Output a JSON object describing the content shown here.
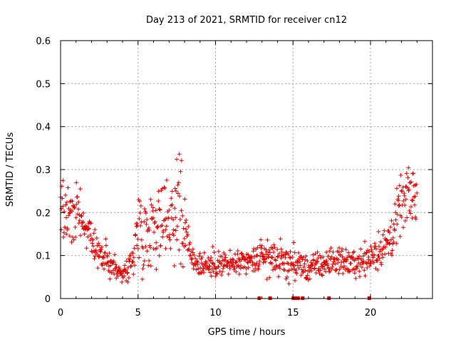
{
  "chart_data": {
    "type": "scatter",
    "title": "Day 213 of 2021, SRMTID for receiver cn12",
    "xlabel": "GPS time / hours",
    "ylabel": "SRMTID / TECUs",
    "xlim": [
      0,
      24
    ],
    "ylim": [
      0,
      0.6
    ],
    "x_ticks": [
      0,
      5,
      10,
      15,
      20
    ],
    "y_ticks": [
      0,
      0.1,
      0.2,
      0.3,
      0.4,
      0.5,
      0.6
    ],
    "x_tick_labels": [
      "0",
      "5",
      "10",
      "15",
      "20"
    ],
    "y_tick_labels": [
      "0",
      "0.1",
      "0.2",
      "0.3",
      "0.4",
      "0.5",
      "0.6"
    ],
    "grid": true,
    "marker": "+",
    "color": "#e00000",
    "series": [
      {
        "name": "SRMTID",
        "envelope_x": [
          0,
          0.3,
          0.6,
          1.0,
          1.5,
          2.0,
          2.5,
          3.0,
          3.5,
          4.0,
          4.5,
          5.0,
          5.5,
          6.0,
          6.5,
          7.0,
          7.5,
          7.7,
          8.0,
          8.5,
          9.0,
          10.0,
          11.0,
          12.0,
          13.0,
          14.0,
          15.0,
          16.0,
          17.0,
          18.0,
          19.0,
          20.0,
          21.0,
          21.5,
          22.0,
          22.5,
          22.9
        ],
        "envelope_y": [
          0.22,
          0.2,
          0.2,
          0.19,
          0.18,
          0.13,
          0.1,
          0.09,
          0.07,
          0.06,
          0.07,
          0.17,
          0.15,
          0.18,
          0.17,
          0.2,
          0.22,
          0.28,
          0.15,
          0.1,
          0.08,
          0.08,
          0.08,
          0.08,
          0.1,
          0.09,
          0.08,
          0.07,
          0.08,
          0.09,
          0.08,
          0.1,
          0.12,
          0.16,
          0.22,
          0.24,
          0.24
        ],
        "spread_y": [
          0.06,
          0.06,
          0.08,
          0.06,
          0.05,
          0.04,
          0.04,
          0.04,
          0.03,
          0.03,
          0.04,
          0.09,
          0.08,
          0.09,
          0.09,
          0.1,
          0.12,
          0.22,
          0.07,
          0.04,
          0.03,
          0.03,
          0.03,
          0.03,
          0.04,
          0.04,
          0.04,
          0.03,
          0.03,
          0.03,
          0.03,
          0.04,
          0.05,
          0.06,
          0.06,
          0.06,
          0.07
        ],
        "points_per_hour": 40,
        "data_end_x": 23.0
      }
    ],
    "zero_level_flags_x": [
      12.8,
      13.5,
      15.0,
      15.15,
      15.3,
      15.6,
      17.3,
      19.9
    ]
  }
}
